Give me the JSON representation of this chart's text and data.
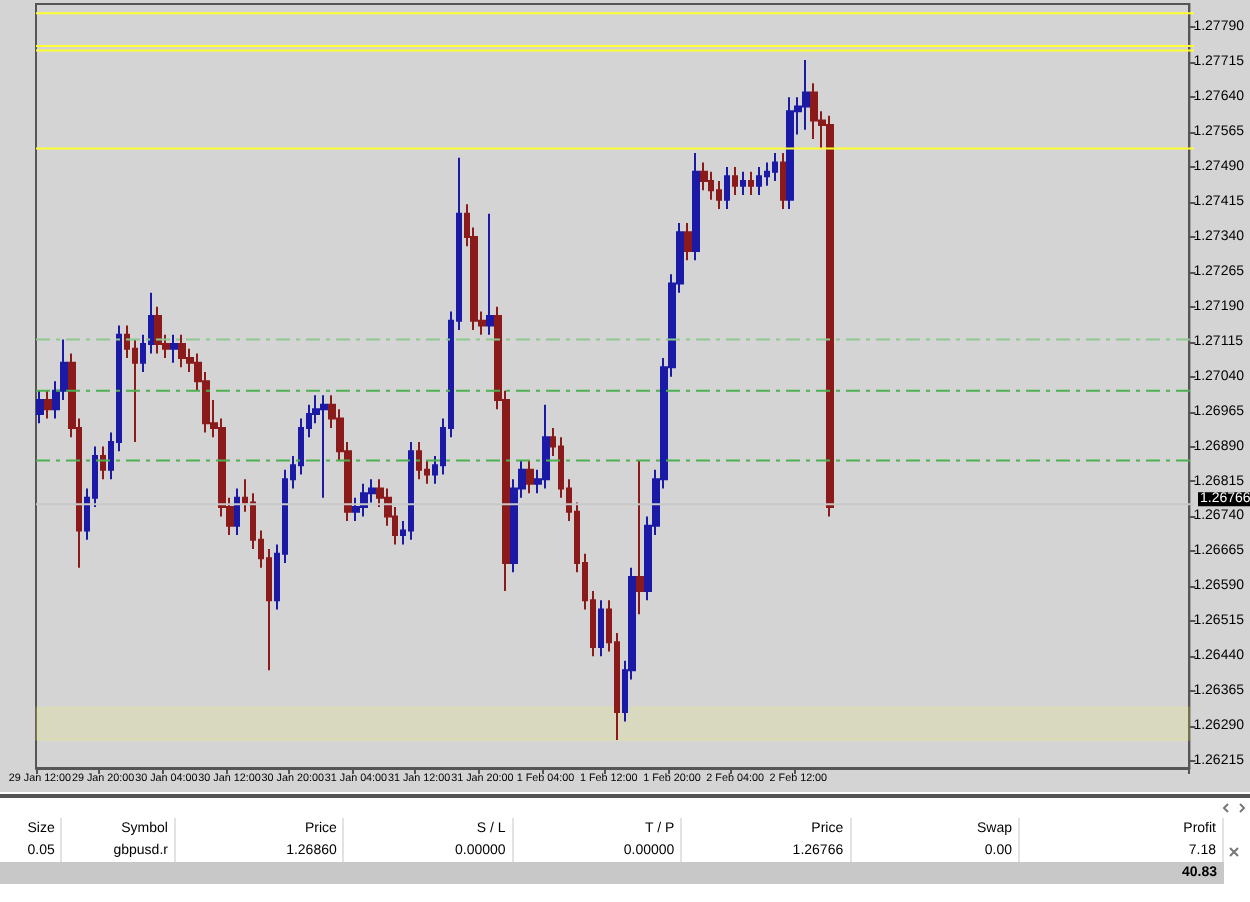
{
  "chart_data": {
    "type": "candlestick",
    "categories": [
      "29 Jan 12:00",
      null,
      null,
      null,
      null,
      null,
      null,
      null,
      "29 Jan 20:00",
      null,
      null,
      null,
      null,
      null,
      null,
      null,
      "30 Jan 04:00",
      null,
      null,
      null,
      null,
      null,
      null,
      null,
      "30 Jan 12:00",
      null,
      null,
      null,
      null,
      null,
      null,
      null,
      "30 Jan 20:00",
      null,
      null,
      null,
      null,
      null,
      null,
      null,
      "31 Jan 04:00",
      null,
      null,
      null,
      null,
      null,
      null,
      null,
      "31 Jan 12:00",
      null,
      null,
      null,
      null,
      null,
      null,
      null,
      "31 Jan 20:00",
      null,
      null,
      null,
      null,
      null,
      null,
      null,
      "1 Feb 04:00",
      null,
      null,
      null,
      null,
      null,
      null,
      null,
      "1 Feb 12:00",
      null,
      null,
      null,
      null,
      null,
      null,
      null,
      "1 Feb 20:00",
      null,
      null,
      null,
      null,
      null,
      null,
      null,
      "2 Feb 04:00",
      null,
      null,
      null,
      null,
      null,
      null,
      null,
      "2 Feb 12:00",
      null,
      null,
      null,
      null,
      null,
      null,
      null,
      null,
      null,
      null,
      null,
      null,
      null,
      null,
      null,
      null,
      null,
      null,
      null,
      null,
      null,
      null,
      null,
      null,
      null,
      null,
      null,
      null,
      null,
      null,
      null,
      null,
      null,
      null,
      null,
      null,
      null,
      null,
      null,
      null,
      null,
      null,
      null,
      null,
      null,
      null,
      null,
      null,
      null
    ],
    "ohlc": [
      [
        1.2696,
        1.2701,
        1.2694,
        1.2699
      ],
      [
        1.2699,
        1.2701,
        1.2695,
        1.2697
      ],
      [
        1.2697,
        1.2703,
        1.2695,
        1.2701
      ],
      [
        1.2701,
        1.2712,
        1.2699,
        1.2707
      ],
      [
        1.2707,
        1.2709,
        1.2691,
        1.2693
      ],
      [
        1.2693,
        1.2695,
        1.2663,
        1.2671
      ],
      [
        1.2671,
        1.268,
        1.2669,
        1.2678
      ],
      [
        1.2678,
        1.2689,
        1.2676,
        1.2687
      ],
      [
        1.2687,
        1.2689,
        1.2682,
        1.2684
      ],
      [
        1.2684,
        1.2692,
        1.2682,
        1.269
      ],
      [
        1.269,
        1.2715,
        1.2688,
        1.2713
      ],
      [
        1.2713,
        1.2715,
        1.2708,
        1.271
      ],
      [
        1.271,
        1.2712,
        1.269,
        1.2707
      ],
      [
        1.2707,
        1.2713,
        1.2705,
        1.2711
      ],
      [
        1.2711,
        1.2722,
        1.2709,
        1.2717
      ],
      [
        1.2717,
        1.2719,
        1.2709,
        1.2711
      ],
      [
        1.2711,
        1.2713,
        1.2708,
        1.271
      ],
      [
        1.271,
        1.2713,
        1.2707,
        1.2711
      ],
      [
        1.2711,
        1.2713,
        1.2706,
        1.2708
      ],
      [
        1.2708,
        1.271,
        1.2705,
        1.2707
      ],
      [
        1.2707,
        1.2709,
        1.2701,
        1.2703
      ],
      [
        1.2703,
        1.2705,
        1.2692,
        1.2694
      ],
      [
        1.2694,
        1.2699,
        1.2691,
        1.2693
      ],
      [
        1.2693,
        1.2695,
        1.2674,
        1.2676
      ],
      [
        1.2676,
        1.2678,
        1.267,
        1.2672
      ],
      [
        1.2672,
        1.268,
        1.267,
        1.2678
      ],
      [
        1.2678,
        1.2682,
        1.2675,
        1.2677
      ],
      [
        1.2677,
        1.2679,
        1.2667,
        1.2669
      ],
      [
        1.2669,
        1.2671,
        1.2663,
        1.2665
      ],
      [
        1.2665,
        1.2667,
        1.2641,
        1.2656
      ],
      [
        1.2656,
        1.2668,
        1.2654,
        1.2666
      ],
      [
        1.2666,
        1.2684,
        1.2664,
        1.2682
      ],
      [
        1.2682,
        1.2687,
        1.268,
        1.2685
      ],
      [
        1.2685,
        1.2695,
        1.2683,
        1.2693
      ],
      [
        1.2693,
        1.2698,
        1.2691,
        1.2696
      ],
      [
        1.2696,
        1.27,
        1.2694,
        1.2697
      ],
      [
        1.2697,
        1.27,
        1.2678,
        1.2698
      ],
      [
        1.2698,
        1.27,
        1.2693,
        1.2695
      ],
      [
        1.2695,
        1.2697,
        1.2686,
        1.2688
      ],
      [
        1.2688,
        1.269,
        1.2673,
        1.2675
      ],
      [
        1.2675,
        1.2678,
        1.2673,
        1.2676
      ],
      [
        1.2676,
        1.2681,
        1.2674,
        1.2679
      ],
      [
        1.2679,
        1.2682,
        1.2677,
        1.268
      ],
      [
        1.268,
        1.2682,
        1.2676,
        1.2678
      ],
      [
        1.2678,
        1.268,
        1.2672,
        1.2674
      ],
      [
        1.2674,
        1.2676,
        1.2668,
        1.267
      ],
      [
        1.267,
        1.2673,
        1.2668,
        1.2671
      ],
      [
        1.2671,
        1.269,
        1.2669,
        1.2688
      ],
      [
        1.2688,
        1.269,
        1.2682,
        1.2684
      ],
      [
        1.2684,
        1.2686,
        1.2681,
        1.2683
      ],
      [
        1.2683,
        1.2687,
        1.2681,
        1.2685
      ],
      [
        1.2685,
        1.2695,
        1.2683,
        1.2693
      ],
      [
        1.2693,
        1.2718,
        1.2691,
        1.2716
      ],
      [
        1.2716,
        1.2751,
        1.2714,
        1.2739
      ],
      [
        1.2739,
        1.2741,
        1.2732,
        1.2734
      ],
      [
        1.2734,
        1.2736,
        1.2714,
        1.2716
      ],
      [
        1.2716,
        1.2718,
        1.2713,
        1.2715
      ],
      [
        1.2715,
        1.2739,
        1.2713,
        1.2717
      ],
      [
        1.2717,
        1.2719,
        1.2697,
        1.2699
      ],
      [
        1.2699,
        1.2701,
        1.2658,
        1.2664
      ],
      [
        1.2664,
        1.2682,
        1.2662,
        1.268
      ],
      [
        1.268,
        1.2686,
        1.2678,
        1.2684
      ],
      [
        1.2684,
        1.2686,
        1.2679,
        1.2681
      ],
      [
        1.2681,
        1.2684,
        1.2679,
        1.2682
      ],
      [
        1.2682,
        1.2698,
        1.268,
        1.2691
      ],
      [
        1.2691,
        1.2693,
        1.2687,
        1.2689
      ],
      [
        1.2689,
        1.2691,
        1.2678,
        1.268
      ],
      [
        1.268,
        1.2682,
        1.2673,
        1.2675
      ],
      [
        1.2675,
        1.2677,
        1.2662,
        1.2664
      ],
      [
        1.2664,
        1.2666,
        1.2654,
        1.2656
      ],
      [
        1.2656,
        1.2658,
        1.2644,
        1.2646
      ],
      [
        1.2646,
        1.2656,
        1.2644,
        1.2654
      ],
      [
        1.2654,
        1.2656,
        1.2645,
        1.2647
      ],
      [
        1.2647,
        1.2649,
        1.2626,
        1.2632
      ],
      [
        1.2632,
        1.2643,
        1.263,
        1.2641
      ],
      [
        1.2641,
        1.2663,
        1.2639,
        1.2661
      ],
      [
        1.2661,
        1.2686,
        1.2653,
        1.2658
      ],
      [
        1.2658,
        1.2674,
        1.2656,
        1.2672
      ],
      [
        1.2672,
        1.2684,
        1.267,
        1.2682
      ],
      [
        1.2682,
        1.2708,
        1.268,
        1.2706
      ],
      [
        1.2706,
        1.2726,
        1.2704,
        1.2724
      ],
      [
        1.2724,
        1.2737,
        1.2722,
        1.2735
      ],
      [
        1.2735,
        1.2737,
        1.2729,
        1.2731
      ],
      [
        1.2731,
        1.2752,
        1.2729,
        1.2748
      ],
      [
        1.2748,
        1.275,
        1.2744,
        1.2746
      ],
      [
        1.2746,
        1.2748,
        1.2742,
        1.2744
      ],
      [
        1.2744,
        1.2746,
        1.274,
        1.2742
      ],
      [
        1.2742,
        1.2749,
        1.274,
        1.2747
      ],
      [
        1.2747,
        1.2749,
        1.2743,
        1.2745
      ],
      [
        1.2745,
        1.2748,
        1.2743,
        1.2746
      ],
      [
        1.2746,
        1.2748,
        1.2743,
        1.2745
      ],
      [
        1.2745,
        1.2749,
        1.2743,
        1.2747
      ],
      [
        1.2747,
        1.275,
        1.2745,
        1.2748
      ],
      [
        1.2748,
        1.2752,
        1.2746,
        1.275
      ],
      [
        1.275,
        1.2752,
        1.274,
        1.2742
      ],
      [
        1.2742,
        1.2764,
        1.274,
        1.2761
      ],
      [
        1.2761,
        1.2764,
        1.2756,
        1.2762
      ],
      [
        1.2762,
        1.2772,
        1.2757,
        1.2765
      ],
      [
        1.2765,
        1.2767,
        1.2755,
        1.2759
      ],
      [
        1.2759,
        1.2761,
        1.2753,
        1.2758
      ],
      [
        1.2758,
        1.276,
        1.2674,
        1.2676
      ],
      null,
      null,
      null,
      null,
      null,
      null,
      null,
      null,
      null,
      null,
      null,
      null,
      null,
      null,
      null,
      null,
      null,
      null,
      null,
      null,
      null,
      null,
      null,
      null,
      null,
      null,
      null,
      null,
      null,
      null,
      null,
      null,
      null,
      null,
      null,
      null,
      null,
      null,
      null,
      null,
      null,
      null,
      null,
      null,
      null
    ],
    "colors": [
      "#1a1aa6",
      "#8b1a1a",
      "#1a1aa6",
      "#1a1aa6",
      "#8b1a1a",
      "#8b1a1a",
      "#1a1aa6",
      "#1a1aa6",
      "#8b1a1a",
      "#1a1aa6",
      "#1a1aa6",
      "#8b1a1a",
      "#8b1a1a",
      "#1a1aa6",
      "#1a1aa6",
      "#8b1a1a",
      "#8b1a1a",
      "#1a1aa6",
      "#8b1a1a",
      "#8b1a1a",
      "#8b1a1a",
      "#8b1a1a",
      "#8b1a1a",
      "#8b1a1a",
      "#8b1a1a",
      "#1a1aa6",
      "#8b1a1a",
      "#8b1a1a",
      "#8b1a1a",
      "#8b1a1a",
      "#1a1aa6",
      "#1a1aa6",
      "#1a1aa6",
      "#1a1aa6",
      "#1a1aa6",
      "#1a1aa6",
      "#1a1aa6",
      "#8b1a1a",
      "#8b1a1a",
      "#8b1a1a",
      "#1a1aa6",
      "#1a1aa6",
      "#1a1aa6",
      "#8b1a1a",
      "#8b1a1a",
      "#8b1a1a",
      "#1a1aa6",
      "#1a1aa6",
      "#8b1a1a",
      "#8b1a1a",
      "#1a1aa6",
      "#1a1aa6",
      "#1a1aa6",
      "#1a1aa6",
      "#8b1a1a",
      "#8b1a1a",
      "#8b1a1a",
      "#1a1aa6",
      "#8b1a1a",
      "#8b1a1a",
      "#1a1aa6",
      "#1a1aa6",
      "#8b1a1a",
      "#1a1aa6",
      "#1a1aa6",
      "#8b1a1a",
      "#8b1a1a",
      "#8b1a1a",
      "#8b1a1a",
      "#8b1a1a",
      "#8b1a1a",
      "#1a1aa6",
      "#8b1a1a",
      "#8b1a1a",
      "#1a1aa6",
      "#1a1aa6",
      "#8b1a1a",
      "#1a1aa6",
      "#1a1aa6",
      "#1a1aa6",
      "#1a1aa6",
      "#1a1aa6",
      "#8b1a1a",
      "#1a1aa6",
      "#8b1a1a",
      "#8b1a1a",
      "#8b1a1a",
      "#1a1aa6",
      "#8b1a1a",
      "#1a1aa6",
      "#8b1a1a",
      "#1a1aa6",
      "#1a1aa6",
      "#1a1aa6",
      "#8b1a1a",
      "#1a1aa6",
      "#1a1aa6",
      "#1a1aa6",
      "#8b1a1a",
      "#8b1a1a",
      "#8b1a1a",
      null,
      null,
      null,
      null,
      null,
      null,
      null,
      null,
      null,
      null,
      null,
      null,
      null,
      null,
      null,
      null,
      null,
      null,
      null,
      null,
      null,
      null,
      null,
      null,
      null,
      null,
      null,
      null,
      null,
      null,
      null,
      null,
      null,
      null,
      null,
      null,
      null,
      null,
      null,
      null,
      null,
      null,
      null,
      null,
      null
    ],
    "ylim": [
      1.262,
      1.2784
    ],
    "yticks": [
      1.26215,
      {
        "value": 1.2629,
        "label": "1.26290"
      },
      1.26365,
      {
        "value": 1.2644,
        "label": "1.26440"
      },
      1.26515,
      {
        "value": 1.2659,
        "label": "1.26590"
      },
      1.26665,
      {
        "value": 1.2674,
        "label": "1.26740"
      },
      1.26815,
      {
        "value": 1.2689,
        "label": "1.26890"
      },
      1.26965,
      {
        "value": 1.2704,
        "label": "1.27040"
      },
      1.27115,
      {
        "value": 1.2719,
        "label": "1.27190"
      },
      1.27265,
      {
        "value": 1.2734,
        "label": "1.27340"
      },
      1.27415,
      {
        "value": 1.2749,
        "label": "1.27490"
      },
      1.27565,
      {
        "value": 1.2764,
        "label": "1.27640"
      },
      1.27715,
      {
        "value": 1.2779,
        "label": "1.27790"
      }
    ],
    "grid": false,
    "ref_lines": [
      {
        "axis": "y",
        "value": 1.2782,
        "label": null,
        "color": "#ffff33",
        "line_style": "solid"
      },
      {
        "axis": "y",
        "value": 1.2775,
        "label": null,
        "color": "#ffff33",
        "line_style": "solid"
      },
      {
        "axis": "y",
        "value": 1.2774,
        "label": null,
        "color": "#ffff33",
        "line_style": "solid"
      },
      {
        "axis": "y",
        "value": 1.2753,
        "label": null,
        "color": "#ffff33",
        "line_style": "solid"
      },
      {
        "axis": "y",
        "value": 1.2712,
        "label": null,
        "color": "#8fc88f",
        "line_style": "dashed"
      },
      {
        "axis": "y",
        "value": 1.2701,
        "label": null,
        "color": "#4caf50",
        "line_style": "dashed"
      },
      {
        "axis": "y",
        "value": 1.2686,
        "label": null,
        "color": "#4caf50",
        "line_style": "dashed"
      },
      {
        "axis": "y",
        "value": 1.26766,
        "label": "1.26766",
        "color": "#c8c8c8",
        "line_style": "solid"
      }
    ],
    "bands": [
      {
        "axis": "y",
        "from": 1.2626,
        "to": 1.2633,
        "label": null,
        "color": "#ffff33"
      }
    ],
    "annotations": [
      "Size",
      "Symbol",
      "Price",
      "S / L",
      "T / P",
      "Price",
      "Swap",
      "Profit",
      "0.05",
      "gbpusd.r",
      "1.26860",
      "0.00000",
      "0.00000",
      "1.26766",
      "0.00",
      "7.18",
      "40.83"
    ]
  }
}
